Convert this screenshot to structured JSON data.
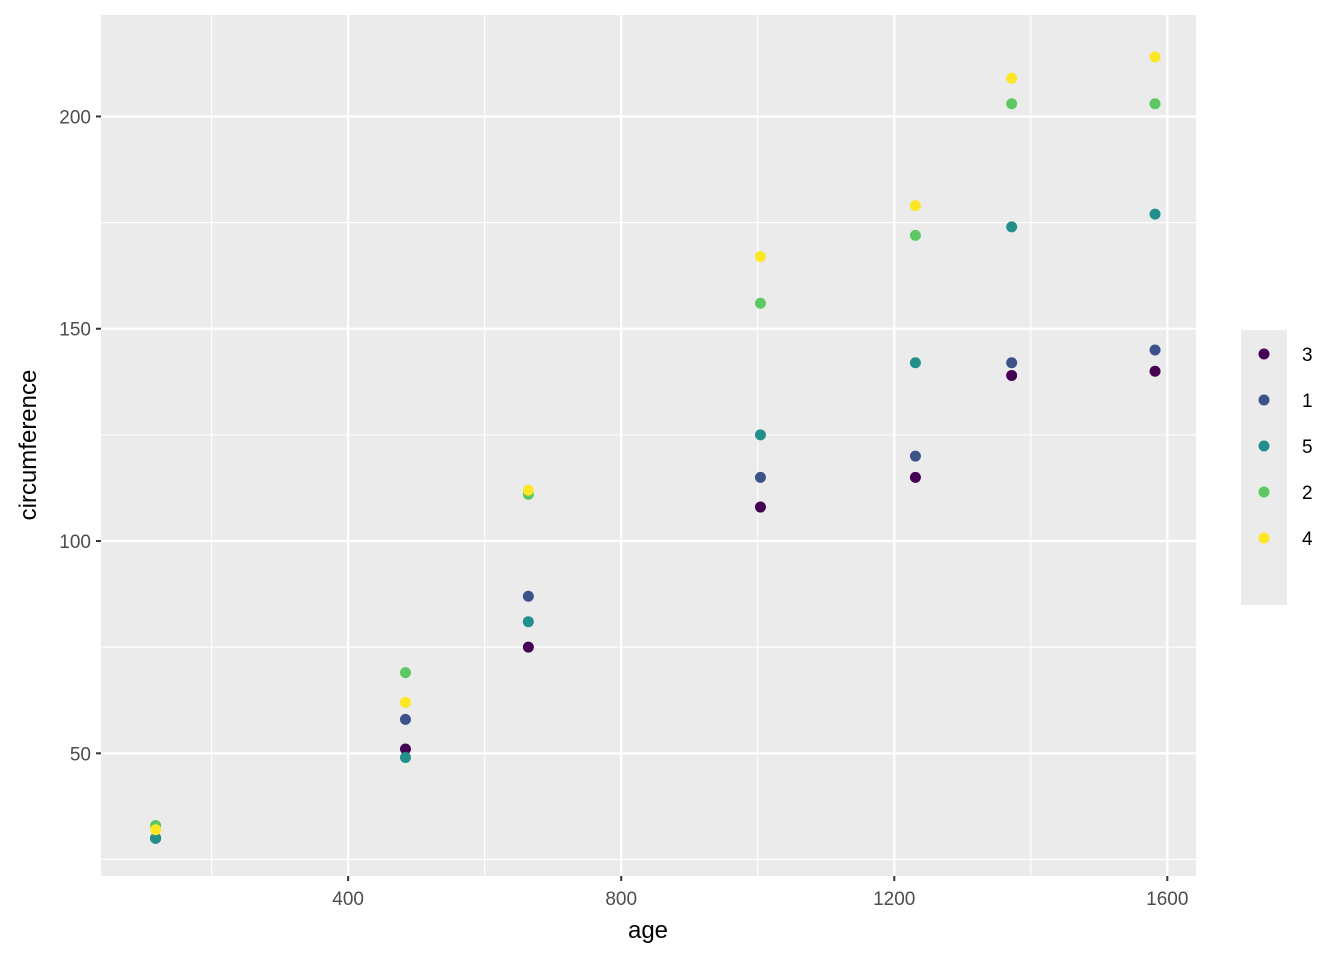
{
  "chart_data": {
    "type": "scatter",
    "title": "",
    "xlabel": "age",
    "ylabel": "circumference",
    "xlim": [
      38,
      1642
    ],
    "ylim": [
      21.1,
      223.9
    ],
    "x_ticks": [
      400,
      800,
      1200,
      1600
    ],
    "x_tick_labels": [
      "400",
      "800",
      "1200",
      "1600"
    ],
    "x_minor": [
      200,
      600,
      1000,
      1400
    ],
    "y_ticks": [
      50,
      100,
      150,
      200
    ],
    "y_tick_labels": [
      "50",
      "100",
      "150",
      "200"
    ],
    "y_minor": [
      25,
      75,
      125,
      175
    ],
    "grid": true,
    "legend_position": "right",
    "x": [
      118,
      484,
      664,
      1004,
      1231,
      1372,
      1582
    ],
    "series": [
      {
        "name": "3",
        "color": "#440154",
        "values": [
          30,
          51,
          75,
          108,
          115,
          139,
          140
        ]
      },
      {
        "name": "1",
        "color": "#3B528B",
        "values": [
          30,
          58,
          87,
          115,
          120,
          142,
          145
        ]
      },
      {
        "name": "5",
        "color": "#21908C",
        "values": [
          30,
          49,
          81,
          125,
          142,
          174,
          177
        ]
      },
      {
        "name": "2",
        "color": "#5DC863",
        "values": [
          33,
          69,
          111,
          156,
          172,
          203,
          203
        ]
      },
      {
        "name": "4",
        "color": "#FDE725",
        "values": [
          32,
          62,
          112,
          167,
          179,
          209,
          214
        ]
      }
    ]
  },
  "colors": {
    "panel_background": "#EBEBEB",
    "grid_major": "#FFFFFF",
    "legend_background": "#EBEBEB"
  }
}
